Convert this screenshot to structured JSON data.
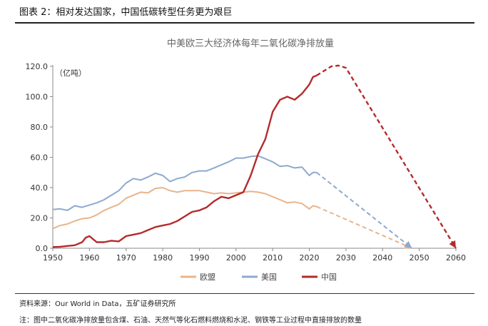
{
  "figure_title": "图表 2：相对发达国家，中国低碳转型任务更为艰巨",
  "source": "资料来源：Our World in Data，五矿证券研究所",
  "note": "注：图中二氧化碳净排放量包含煤、石油、天然气等化石燃料燃烧和水泥、钢铁等工业过程中直接排放的数量",
  "chart_data": {
    "type": "line",
    "title": "中美欧三大经济体每年二氧化碳净排放量",
    "unit_label": "（亿吨）",
    "xlim": [
      1950,
      2060
    ],
    "ylim": [
      0,
      120
    ],
    "x_ticks": [
      "1950",
      "1960",
      "1970",
      "1980",
      "1990",
      "2000",
      "2010",
      "2020",
      "2030",
      "2040",
      "2050",
      "2060"
    ],
    "y_ticks": [
      "0.0",
      "20.0",
      "40.0",
      "60.0",
      "80.0",
      "100.0",
      "120.0"
    ],
    "legend_position": "bottom-center",
    "series": [
      {
        "name": "欧盟",
        "color": "#E8B48C",
        "x": [
          1950,
          1952,
          1954,
          1956,
          1958,
          1960,
          1962,
          1964,
          1966,
          1968,
          1970,
          1972,
          1974,
          1976,
          1978,
          1980,
          1982,
          1984,
          1986,
          1988,
          1990,
          1992,
          1994,
          1996,
          1998,
          2000,
          2002,
          2004,
          2006,
          2008,
          2010,
          2012,
          2014,
          2016,
          2018,
          2020,
          2021,
          2022
        ],
        "values": [
          13,
          15,
          16,
          18,
          19.5,
          20,
          22,
          25,
          27,
          29,
          33,
          35,
          37,
          36.5,
          39.5,
          40,
          38,
          37,
          38,
          38,
          38,
          37,
          36,
          36.5,
          36,
          36.5,
          37,
          37.5,
          37,
          36,
          34,
          32,
          30,
          30.5,
          29.5,
          26,
          28,
          27.5
        ],
        "projection": {
          "x": [
            2022,
            2048
          ],
          "values": [
            27.5,
            0
          ]
        }
      },
      {
        "name": "美国",
        "color": "#8EA9CF",
        "x": [
          1950,
          1952,
          1954,
          1956,
          1958,
          1960,
          1962,
          1964,
          1966,
          1968,
          1970,
          1972,
          1974,
          1976,
          1978,
          1980,
          1982,
          1984,
          1986,
          1988,
          1990,
          1992,
          1994,
          1996,
          1998,
          2000,
          2002,
          2004,
          2006,
          2008,
          2010,
          2012,
          2014,
          2016,
          2018,
          2020,
          2021,
          2022
        ],
        "values": [
          25.5,
          26,
          25,
          28,
          27,
          28.5,
          30,
          32,
          35,
          38,
          43,
          46,
          45,
          47,
          49.5,
          48,
          44,
          46,
          47,
          50,
          51,
          51,
          53,
          55,
          57,
          59.5,
          59.5,
          60.5,
          61,
          59,
          57,
          54,
          54.5,
          53,
          53.5,
          48,
          50,
          50
        ],
        "projection": {
          "x": [
            2022,
            2048
          ],
          "values": [
            50,
            0
          ]
        }
      },
      {
        "name": "中国",
        "color": "#B52A2A",
        "x": [
          1950,
          1952,
          1954,
          1956,
          1958,
          1959,
          1960,
          1961,
          1962,
          1964,
          1966,
          1968,
          1970,
          1972,
          1974,
          1976,
          1978,
          1980,
          1982,
          1984,
          1986,
          1988,
          1990,
          1992,
          1994,
          1996,
          1998,
          2000,
          2002,
          2004,
          2006,
          2008,
          2010,
          2012,
          2014,
          2016,
          2018,
          2020,
          2021,
          2022
        ],
        "values": [
          0.8,
          1,
          1.5,
          2,
          4,
          7,
          8,
          6,
          4,
          4,
          5,
          4.5,
          8,
          9,
          10,
          12,
          14,
          15,
          16,
          18,
          21,
          24,
          25,
          27,
          31,
          34,
          33,
          35,
          37,
          48,
          62,
          72,
          90,
          98,
          100,
          98,
          102,
          108,
          113,
          114
        ],
        "projection": {
          "x": [
            2022,
            2026,
            2028,
            2030,
            2060
          ],
          "values": [
            114,
            120,
            120.5,
            119,
            0
          ]
        }
      }
    ]
  }
}
